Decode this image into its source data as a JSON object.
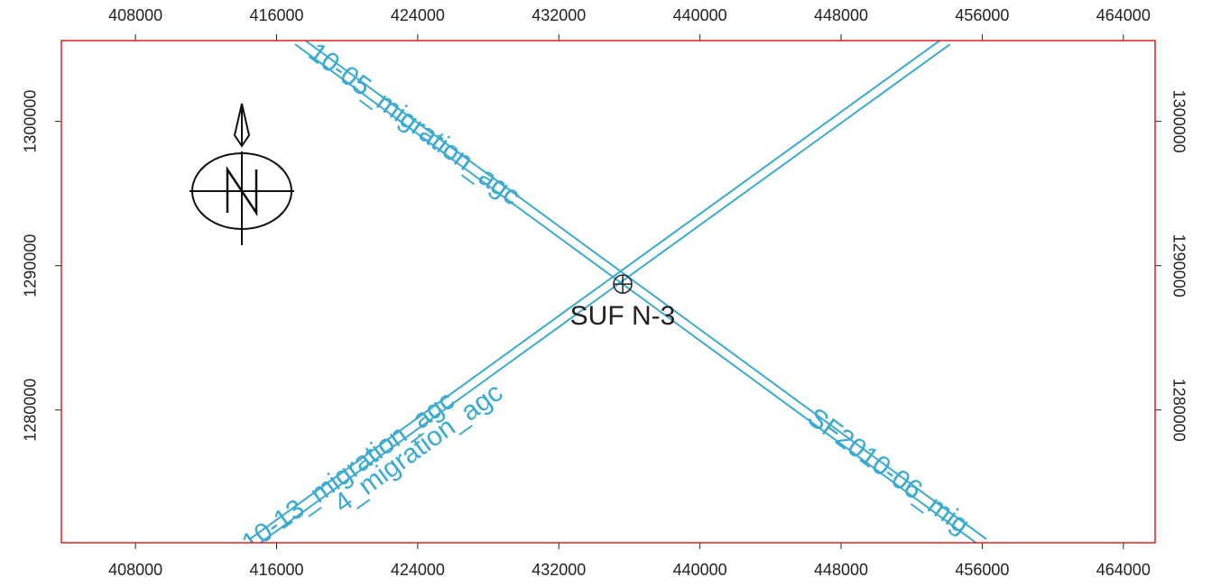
{
  "map": {
    "xlim": [
      403800,
      465800
    ],
    "ylim": [
      1270800,
      1305600
    ],
    "xticks": [
      408000,
      416000,
      424000,
      432000,
      440000,
      448000,
      456000,
      464000
    ],
    "yticks": [
      1280000,
      1290000,
      1300000
    ],
    "frame_color": "#d22",
    "line_color": "#3aaad2",
    "lines": [
      {
        "label": "10-05_migration_agc",
        "end_label": "SF2010-06_mig",
        "x": [
          417200,
          456080
        ],
        "y": [
          1305600,
          1270800
        ]
      },
      {
        "label": "10-13_migration_agc",
        "end_label": "4_migration_agc",
        "x": [
          414640,
          454030
        ],
        "y": [
          1270800,
          1305600
        ]
      }
    ],
    "well": {
      "label": "SUF N-3",
      "x": 435620,
      "y": 1288725
    }
  }
}
